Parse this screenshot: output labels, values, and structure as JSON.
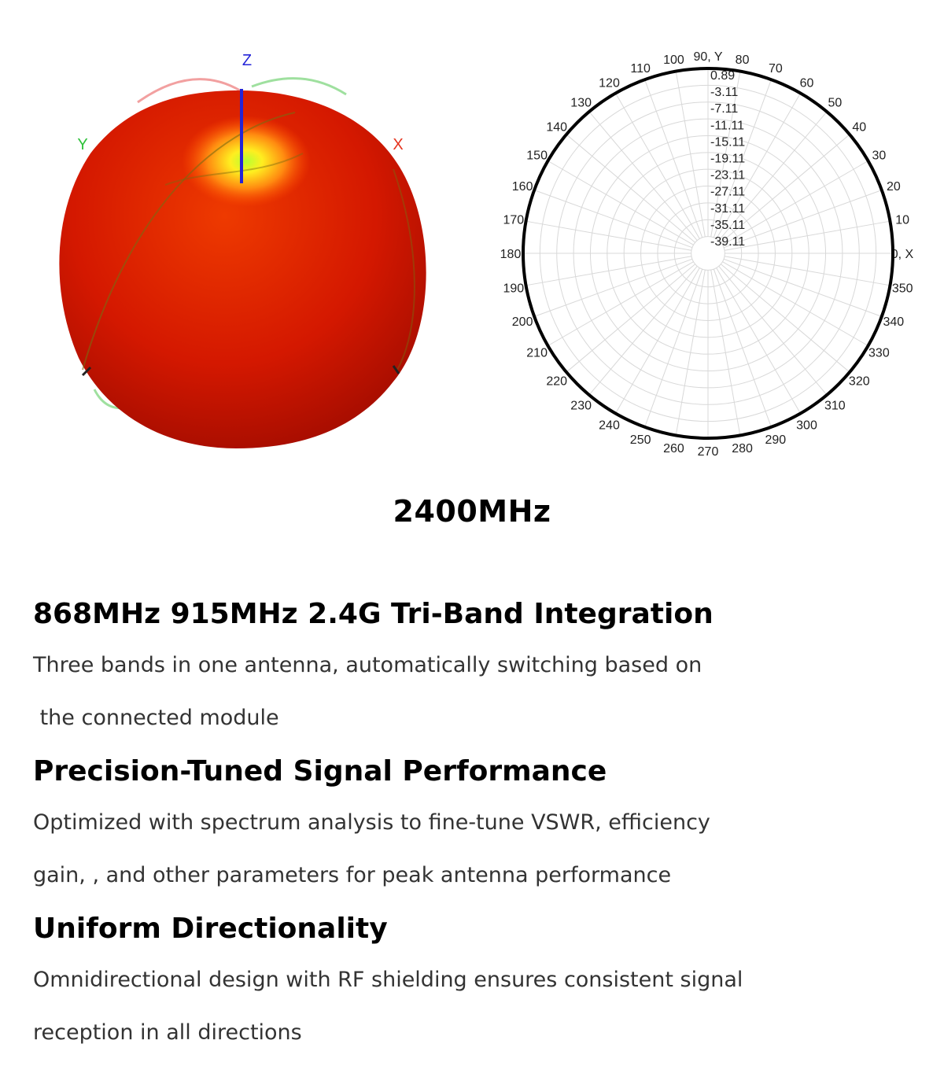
{
  "sphere_plot": {
    "axis_labels": {
      "z": "Z",
      "y": "Y",
      "x": "X"
    },
    "colors": {
      "z_axis": "#2424d8",
      "y_label": "#2fc13a",
      "x_label": "#e5331e",
      "body": "#d91a00"
    }
  },
  "polar_plot": {
    "angle_labels": [
      "0, X",
      "10",
      "20",
      "30",
      "40",
      "50",
      "60",
      "70",
      "80",
      "90, Y",
      "100",
      "110",
      "120",
      "130",
      "140",
      "150",
      "160",
      "170",
      "180",
      "190",
      "200",
      "210",
      "220",
      "230",
      "240",
      "250",
      "260",
      "270",
      "280",
      "290",
      "300",
      "310",
      "320",
      "330",
      "340",
      "350"
    ],
    "radial_labels": [
      "0.89",
      "-3.11",
      "-7.11",
      "-11.11",
      "-15.11",
      "-19.11",
      "-23.11",
      "-27.11",
      "-31.11",
      "-35.11",
      "-39.11"
    ],
    "pattern_gain_db": 0.89,
    "radial_min_db": -39.11,
    "radial_max_db": 0.89
  },
  "frequency_title": "2400MHz",
  "features": [
    {
      "heading": "868MHz 915MHz 2.4G Tri-Band Integration",
      "lines": [
        "Three bands in one antenna, automatically switching based on",
        " the connected module"
      ]
    },
    {
      "heading": "Precision-Tuned Signal Performance",
      "lines": [
        "Optimized with spectrum analysis to fine-tune VSWR, efficiency",
        "gain, , and other parameters for peak antenna performance"
      ]
    },
    {
      "heading": "Uniform Directionality",
      "lines": [
        "Omnidirectional design with RF shielding ensures consistent signal",
        "reception in all directions"
      ]
    }
  ]
}
